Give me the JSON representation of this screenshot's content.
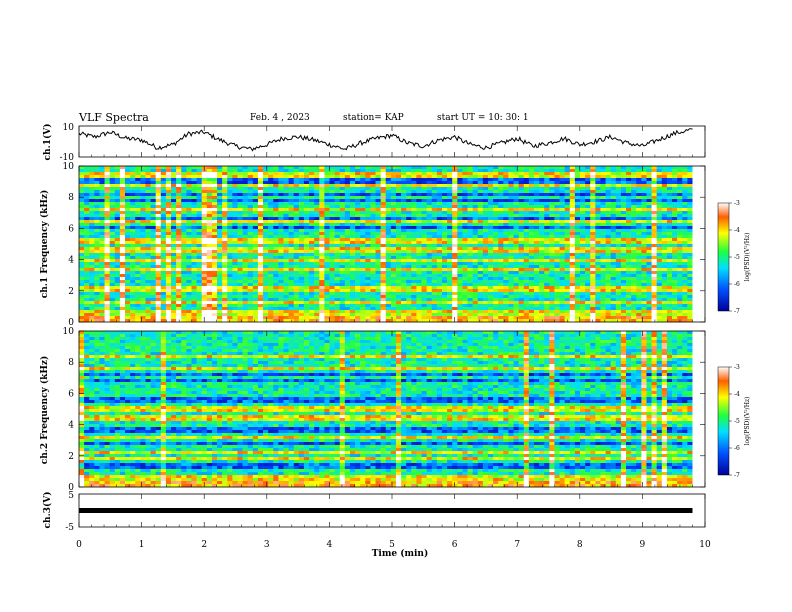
{
  "header": {
    "title": "VLF Spectra",
    "date": "Feb. 4 , 2023",
    "station": "station= KAP",
    "start_time": "start UT = 10: 30: 1"
  },
  "chart_data": [
    {
      "type": "line",
      "panel": "ch1-waveform",
      "ylabel": "ch.1(V)",
      "ylim": [
        -10,
        10
      ],
      "yticks": [
        "10",
        "-10"
      ],
      "xlim": [
        0,
        10
      ],
      "x": [
        0,
        0.25,
        0.5,
        0.75,
        1.0,
        1.25,
        1.5,
        1.75,
        2.0,
        2.25,
        2.5,
        2.75,
        3.0,
        3.25,
        3.5,
        3.75,
        4.0,
        4.25,
        4.5,
        4.75,
        5.0,
        5.25,
        5.5,
        5.75,
        6.0,
        6.25,
        6.5,
        6.75,
        7.0,
        7.25,
        7.5,
        7.75,
        8.0,
        8.25,
        8.5,
        8.75,
        9.0,
        9.25,
        9.5,
        9.8
      ],
      "values": [
        5,
        3,
        6,
        2,
        1,
        -4,
        -2,
        5,
        6,
        1,
        -3,
        -5,
        -2,
        2,
        3,
        1,
        -2,
        -5,
        -1,
        2,
        4,
        -1,
        -3,
        1,
        3,
        -2,
        -4,
        -1,
        2,
        -3,
        -1,
        2,
        -2,
        0,
        3,
        -1,
        -3,
        1,
        5,
        8
      ]
    },
    {
      "type": "heatmap",
      "panel": "ch1-spectrogram",
      "ylabel": "ch.1 Frequency (kHz)",
      "ylim": [
        0,
        10
      ],
      "xlim": [
        0,
        9.8
      ],
      "yticks": [
        "0",
        "2",
        "4",
        "6",
        "8",
        "10"
      ],
      "colorbar": {
        "label": "log(PSD)(V²/Hz)",
        "range": [
          -7,
          -3
        ],
        "ticks": [
          "-3",
          "-4",
          "-5",
          "-6",
          "-7"
        ]
      },
      "bright_bands_khz": [
        0.2,
        0.6,
        1.2,
        2.0,
        2.2,
        3.4,
        4.0,
        4.6,
        5.2,
        6.4,
        7.2,
        8.8,
        9.4
      ],
      "dark_bands_khz": [
        6.1,
        6.6,
        7.8,
        8.2,
        9.0
      ]
    },
    {
      "type": "heatmap",
      "panel": "ch2-spectrogram",
      "ylabel": "ch.2 Frequency (kHz)",
      "ylim": [
        0,
        10
      ],
      "xlim": [
        0,
        9.8
      ],
      "yticks": [
        "0",
        "2",
        "4",
        "6",
        "8",
        "10"
      ],
      "colorbar": {
        "label": "log(PSD)(V²/Hz)",
        "range": [
          -7,
          -3
        ],
        "ticks": [
          "-3",
          "-4",
          "-5",
          "-6",
          "-7"
        ]
      },
      "bright_bands_khz": [
        0.2,
        0.6,
        1.8,
        2.2,
        3.2,
        4.4,
        5.0,
        7.6,
        8.4
      ],
      "dark_bands_khz": [
        1.4,
        2.8,
        3.6,
        5.6,
        6.8,
        7.2
      ]
    },
    {
      "type": "line",
      "panel": "ch3-waveform",
      "ylabel": "ch.3(V)",
      "xlabel": "Time (min)",
      "ylim": [
        -5,
        5
      ],
      "yticks": [
        "5",
        "-5"
      ],
      "xlim": [
        0,
        10
      ],
      "xticks": [
        "0",
        "1",
        "2",
        "3",
        "4",
        "5",
        "6",
        "7",
        "8",
        "9",
        "10"
      ],
      "x": [
        0,
        9.8
      ],
      "values": [
        0,
        0
      ]
    }
  ]
}
